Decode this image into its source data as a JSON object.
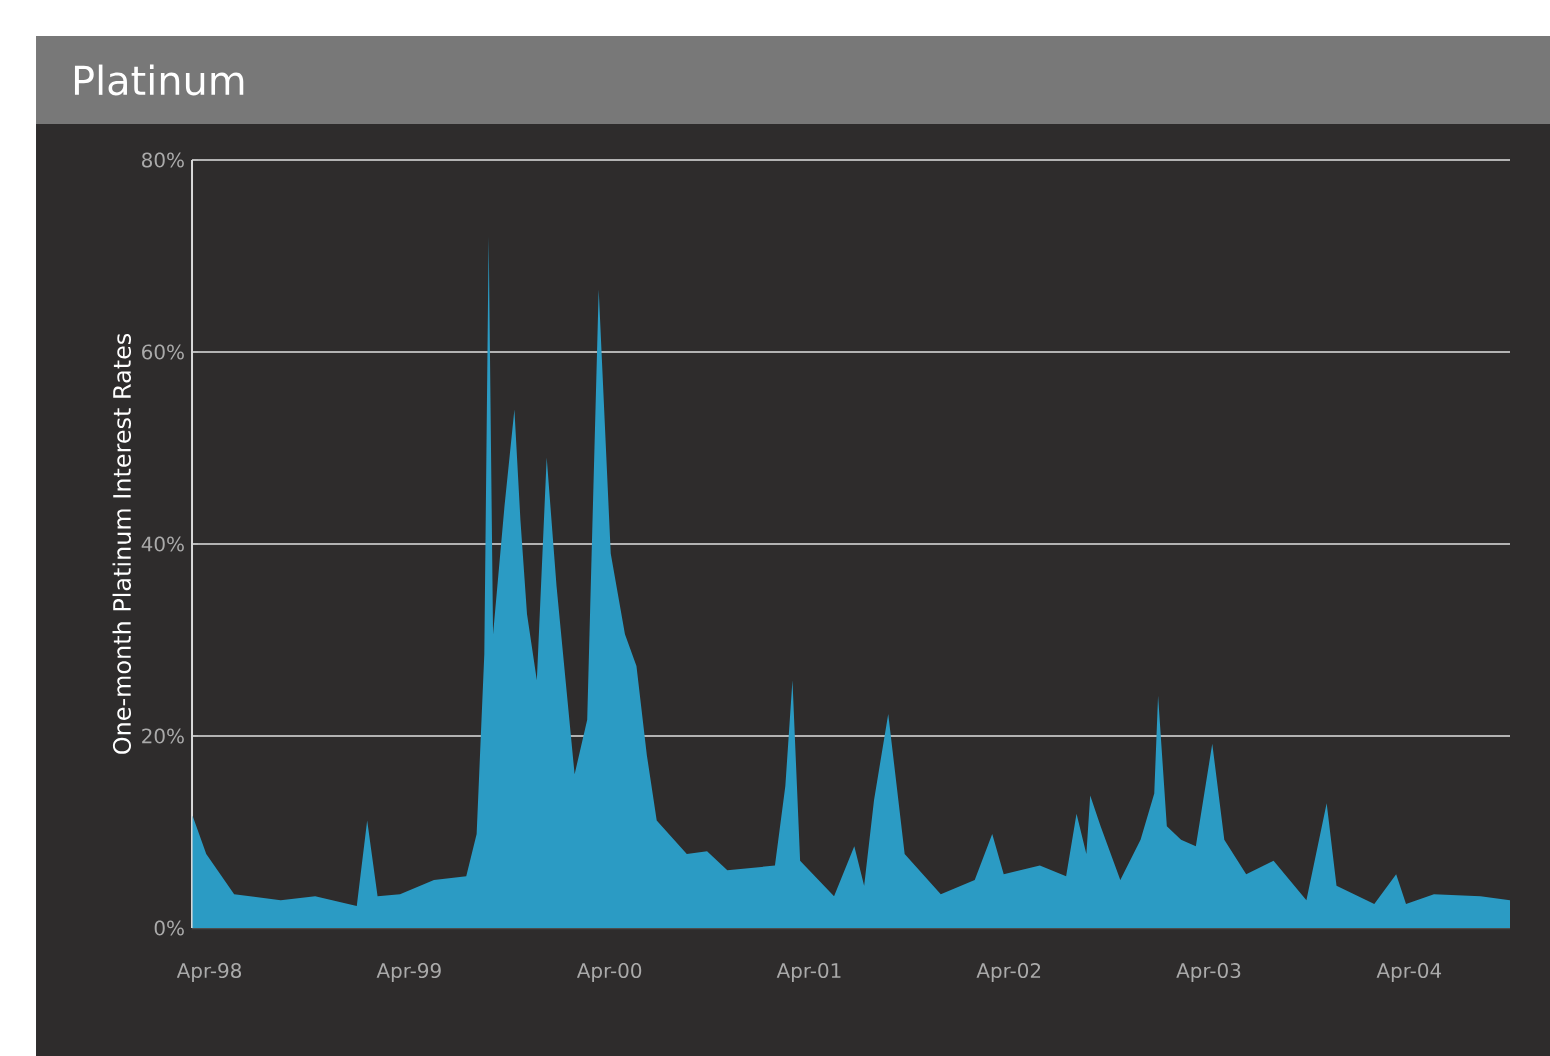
{
  "chart_data": {
    "type": "area",
    "title": "Platinum",
    "ylabel": "One-month Platinum Interest Rates",
    "color": "#2b9bc4",
    "grid": "y",
    "xlim": [
      "1998-02-28",
      "2004-10-02"
    ],
    "ylim": [
      0,
      80
    ],
    "xticks": [
      {
        "value": "1998-04-01",
        "label": "Apr-98"
      },
      {
        "value": "1999-04-01",
        "label": "Apr-99"
      },
      {
        "value": "2000-04-01",
        "label": "Apr-00"
      },
      {
        "value": "2001-04-01",
        "label": "Apr-01"
      },
      {
        "value": "2002-04-01",
        "label": "Apr-02"
      },
      {
        "value": "2003-04-01",
        "label": "Apr-03"
      },
      {
        "value": "2004-04-01",
        "label": "Apr-04"
      }
    ],
    "yticks": [
      {
        "value": 0,
        "label": "0%"
      },
      {
        "value": 20,
        "label": "20%"
      },
      {
        "value": 40,
        "label": "40%"
      },
      {
        "value": 60,
        "label": "60%"
      },
      {
        "value": 80,
        "label": "80%"
      }
    ],
    "x": [
      "1998-03-01",
      "1998-03-26",
      "1998-05-16",
      "1998-08-09",
      "1998-10-11",
      "1998-12-26",
      "1999-01-14",
      "1999-02-02",
      "1999-03-15",
      "1999-05-16",
      "1999-07-14",
      "1999-08-02",
      "1999-08-16",
      "1999-08-24",
      "1999-09-01",
      "1999-09-22",
      "1999-10-10",
      "1999-10-21",
      "1999-11-02",
      "1999-11-20",
      "1999-12-08",
      "1999-12-26",
      "2000-01-28",
      "2000-02-20",
      "2000-03-12",
      "2000-04-03",
      "2000-04-29",
      "2000-05-20",
      "2000-06-08",
      "2000-06-26",
      "2000-08-20",
      "2000-09-26",
      "2000-11-02",
      "2001-01-28",
      "2001-02-16",
      "2001-03-01",
      "2001-03-15",
      "2001-05-16",
      "2001-06-22",
      "2001-07-10",
      "2001-07-28",
      "2001-08-23",
      "2001-09-22",
      "2001-11-27",
      "2002-01-28",
      "2002-03-01",
      "2002-03-22",
      "2002-05-27",
      "2002-07-14",
      "2002-08-02",
      "2002-08-20",
      "2002-08-27",
      "2002-09-15",
      "2002-10-21",
      "2002-11-27",
      "2002-12-22",
      "2002-12-29",
      "2003-01-14",
      "2003-02-09",
      "2003-03-08",
      "2003-04-07",
      "2003-04-29",
      "2003-06-08",
      "2003-07-28",
      "2003-09-26",
      "2003-11-02",
      "2003-11-20",
      "2004-01-28",
      "2004-03-08",
      "2004-03-26",
      "2004-05-16",
      "2004-08-09",
      "2004-10-02"
    ],
    "values": [
      11.7,
      7.7,
      3.5,
      2.9,
      3.3,
      2.3,
      11.2,
      3.3,
      3.5,
      5,
      5.4,
      9.8,
      28.5,
      72,
      30.6,
      44,
      54,
      42.5,
      32.7,
      25.8,
      49,
      35.6,
      16,
      21.7,
      66.5,
      39,
      30.6,
      27.3,
      18,
      11.2,
      7.7,
      8,
      6,
      6.5,
      14.8,
      25.8,
      7,
      3.3,
      8.5,
      4.4,
      13.3,
      22.3,
      7.7,
      3.5,
      5,
      9.8,
      5.6,
      6.5,
      5.4,
      11.9,
      7.7,
      13.8,
      10.6,
      5,
      9.2,
      14,
      24.2,
      10.6,
      9.2,
      8.5,
      19.2,
      9.2,
      5.6,
      7,
      2.9,
      13,
      4.4,
      2.5,
      5.6,
      2.5,
      3.5,
      3.3,
      2.9
    ]
  }
}
